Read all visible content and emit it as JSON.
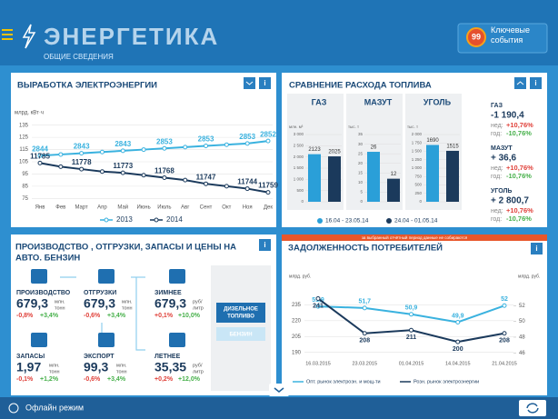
{
  "header": {
    "title": "ЭНЕРГЕТИКА",
    "subtitle": "ОБЩИЕ СВЕДЕНИЯ",
    "events_count": 99,
    "events_label": "Ключевые события"
  },
  "generation": {
    "type": "line",
    "title": "ВЫРАБОТКА ЭЛЕКТРОЭНЕРГИИ",
    "y_label": "млрд. кВт·ч",
    "categories": [
      "Янв",
      "Фев",
      "Март",
      "Апр",
      "Май",
      "Июнь",
      "Июль",
      "Авг",
      "Сент",
      "Окт",
      "Ноя",
      "Дек"
    ],
    "ylim": [
      73,
      137
    ],
    "yticks": [
      75,
      85,
      95,
      105,
      115,
      125,
      135
    ],
    "grid": true,
    "series": [
      {
        "name": "2013",
        "color": "#3ab2df",
        "values": [
          110,
          111,
          112,
          113,
          114,
          115,
          116,
          117,
          118,
          119,
          120,
          122
        ],
        "point_labels": [
          "2844",
          null,
          "2843",
          null,
          "2843",
          null,
          "2853",
          null,
          "2853",
          null,
          "2853",
          "2852"
        ]
      },
      {
        "name": "2014",
        "color": "#1b3a5c",
        "values": [
          104,
          101,
          99,
          97,
          96,
          94,
          92,
          90,
          87,
          85,
          83,
          80
        ],
        "point_labels": [
          "11785",
          null,
          "11778",
          null,
          "11773",
          null,
          "11768",
          null,
          "11747",
          null,
          "11744",
          "11759"
        ]
      }
    ]
  },
  "fuel": {
    "title": "СРАВНЕНИЕ РАСХОДА ТОПЛИВА",
    "legend": [
      {
        "name": "16.04 - 23.05.14",
        "color": "#2a9fd8"
      },
      {
        "name": "24.04 - 01.05.14",
        "color": "#1b3a5c"
      }
    ],
    "charts": [
      {
        "type": "bar",
        "title": "ГАЗ",
        "unit": "млн. м³",
        "values": [
          2123,
          2025
        ],
        "ylim": [
          0,
          3000
        ],
        "yticks": [
          0,
          500,
          {
            "value": 1000,
            "label": "1 000"
          },
          {
            "value": 1500,
            "label": "1 500"
          },
          {
            "value": 2000,
            "label": "2 000"
          },
          {
            "value": 2500,
            "label": "2 500"
          },
          {
            "value": 3000,
            "label": "3 000"
          }
        ]
      },
      {
        "type": "bar",
        "title": "МАЗУТ",
        "unit": "тыс. т",
        "values": [
          26,
          12
        ],
        "ylim": [
          0,
          35
        ],
        "yticks": [
          0,
          5,
          10,
          15,
          20,
          25,
          30,
          35
        ]
      },
      {
        "type": "bar",
        "title": "УГОЛЬ",
        "unit": "тыс. т",
        "values": [
          1690,
          1515
        ],
        "ylim": [
          0,
          2000
        ],
        "yticks": [
          0,
          250,
          500,
          750,
          {
            "value": 1000,
            "label": "1 000"
          },
          {
            "value": 1250,
            "label": "1 250"
          },
          {
            "value": 1500,
            "label": "1 500"
          },
          {
            "value": 1750,
            "label": "1 750"
          },
          {
            "value": 2000,
            "label": "2 000"
          }
        ]
      }
    ],
    "stats": [
      {
        "name": "ГАЗ",
        "total": "-1 190,4",
        "week_label": "нед:",
        "week": "+10,76%",
        "year_label": "год:",
        "year": "-10,76%"
      },
      {
        "name": "МАЗУТ",
        "total": "+ 36,6",
        "week_label": "нед:",
        "week": "+10,76%",
        "year_label": "год:",
        "year": "-10,76%"
      },
      {
        "name": "УГОЛЬ",
        "total": "+ 2 800,7",
        "week_label": "нед:",
        "week": "+10,76%",
        "year_label": "год:",
        "year": "-10,76%"
      }
    ]
  },
  "gasoline": {
    "title_line1": "ПРОИЗВОДСТВО , ОТГРУЗКИ, ЗАПАСЫ И ЦЕНЫ НА",
    "title_line2": "АВТО. БЕНЗИН",
    "items": [
      {
        "label": "ПРОИЗВОДСТВО",
        "value": "679,3",
        "unit1": "млн.",
        "unit2": "тонн",
        "week": "-0,8%",
        "year": "+3,4%"
      },
      {
        "label": "ОТГРУЗКИ",
        "value": "679,3",
        "unit1": "млн.",
        "unit2": "тонн",
        "week": "-0,6%",
        "year": "+3,4%"
      },
      {
        "label": "ЗИМНЕЕ",
        "value": "679,3",
        "unit1": "руб/",
        "unit2": "литр",
        "week": "+0,1%",
        "year": "+10,0%"
      },
      {
        "label": "ЗАПАСЫ",
        "value": "1,97",
        "unit1": "млн.",
        "unit2": "тонн",
        "week": "-0,1%",
        "year": "+1,2%"
      },
      {
        "label": "ЭКСПОРТ",
        "value": "99,3",
        "unit1": "млн.",
        "unit2": "тонн",
        "week": "-0,6%",
        "year": "+3,4%"
      },
      {
        "label": "ЛЕТНЕЕ",
        "value": "35,35",
        "unit1": "руб/",
        "unit2": "литр",
        "week": "+0,2%",
        "year": "+12,0%"
      }
    ],
    "button_diesel_1": "ДИЗЕЛЬНОЕ",
    "button_diesel_2": "ТОПЛИВО",
    "button_petrol": "БЕНЗИН"
  },
  "debt": {
    "type": "line",
    "notice": "за выбранный отчётный период данные не собираются",
    "title": "ЗАДОЛЖЕННОСТЬ ПОТРЕБИТЕЛЕЙ",
    "y_label": "млрд. руб.",
    "y2_label": "млрд. руб.",
    "x": [
      "16.03.2015",
      "23.03.2015",
      "01.04.2015",
      "14.04.2015",
      "21.04.2015"
    ],
    "ylim": [
      188,
      244
    ],
    "yticks": [
      190,
      205,
      220,
      235
    ],
    "y2lim": [
      45.8,
      53.3
    ],
    "y2ticks": [
      46,
      48,
      50,
      52
    ],
    "series": [
      {
        "name": "Опт. рынок электроэн. и мощ-ти",
        "color": "#3ab2df",
        "axis": "y2",
        "values": [
          51.9,
          51.7,
          50.9,
          49.9,
          52
        ],
        "value_labels": [
          "51,9",
          "51,7",
          "50,9",
          "49,9",
          "52"
        ]
      },
      {
        "name": "Розн. рынок электроэнергии",
        "color": "#1b3a5c",
        "values": [
          241,
          208,
          211,
          200,
          208
        ]
      }
    ]
  },
  "footer": {
    "status": "Офлайн режим"
  }
}
